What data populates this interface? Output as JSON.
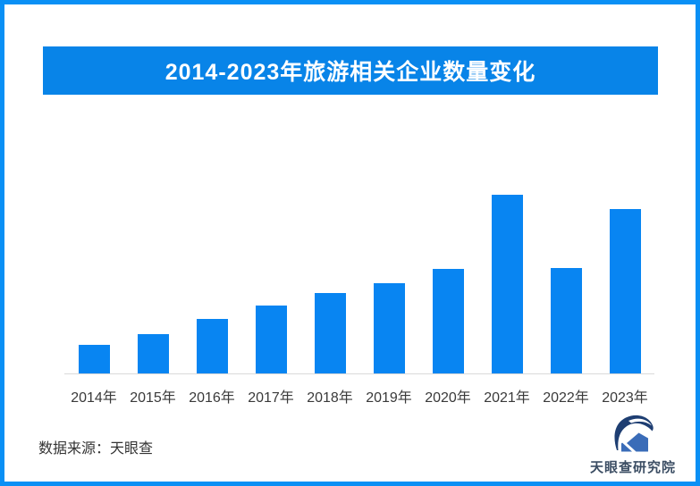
{
  "frame": {
    "border_color": "#0a90f5",
    "background": "#ffffff"
  },
  "title_banner": {
    "text": "2014-2023年旅游相关企业数量变化",
    "bg_color": "#0884e8",
    "text_color": "#ffffff"
  },
  "chart_data": {
    "type": "bar",
    "title": "2014-2023年旅游相关企业数量变化",
    "categories": [
      "2014年",
      "2015年",
      "2016年",
      "2017年",
      "2018年",
      "2019年",
      "2020年",
      "2021年",
      "2022年",
      "2023年"
    ],
    "values": [
      16,
      22,
      30.5,
      38,
      45,
      50.5,
      58.5,
      100,
      59,
      92
    ],
    "values_note": "relative heights in % of 2021 peak; chart shows no numeric axis or data labels",
    "xlabel": "",
    "ylabel": "",
    "ylim": [
      0,
      100
    ],
    "bar_color": "#0885f2",
    "axis_line_color": "#d9d9d9",
    "grid": false,
    "legend": false
  },
  "footer": {
    "source_label": "数据来源：天眼查"
  },
  "logo": {
    "icon": "tianyancha-eye-house-icon",
    "text": "天眼查研究院",
    "dark_color": "#1e3e72",
    "mid_color": "#3a6cb8",
    "text_color": "#3b4d63"
  }
}
